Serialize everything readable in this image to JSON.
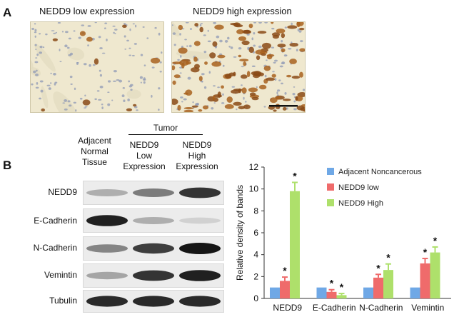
{
  "panel_a": {
    "letter": "A",
    "left_title": "NEDD9 low expression",
    "right_title": "NEDD9 high expression"
  },
  "panel_b": {
    "letter": "B",
    "western_blot": {
      "group_header": "Tumor",
      "columns": [
        {
          "lines": [
            "Adjacent",
            "Normal",
            "Tissue"
          ]
        },
        {
          "lines": [
            "NEDD9",
            "Low",
            "Expression"
          ]
        },
        {
          "lines": [
            "NEDD9",
            "High",
            "Expression"
          ]
        }
      ],
      "rows": [
        {
          "label": "NEDD9",
          "intensity": [
            0.25,
            0.5,
            0.85
          ]
        },
        {
          "label": "E-Cadherin",
          "intensity": [
            0.95,
            0.25,
            0.08
          ]
        },
        {
          "label": "N-Cadherin",
          "intensity": [
            0.45,
            0.8,
            1.0
          ]
        },
        {
          "label": "Vemintin",
          "intensity": [
            0.3,
            0.85,
            0.95
          ]
        },
        {
          "label": "Tubulin",
          "intensity": [
            0.9,
            0.9,
            0.9
          ]
        }
      ]
    }
  },
  "colors": {
    "adjacent": "#6fa8e6",
    "low": "#ef6b6b",
    "high": "#aee06b"
  },
  "chart_data": {
    "type": "bar",
    "title": "",
    "xlabel": "",
    "ylabel": "Relative density of bands",
    "ylim": [
      0,
      12
    ],
    "yticks": [
      0,
      2,
      4,
      6,
      8,
      10,
      12
    ],
    "categories": [
      "NEDD9",
      "E-Cadherin",
      "N-Cadherin",
      "Vemintin"
    ],
    "series": [
      {
        "name": "Adjacent Noncancerous",
        "values": [
          1.0,
          1.0,
          1.0,
          1.0
        ],
        "errors": [
          0,
          0,
          0,
          0
        ],
        "significant": [
          false,
          false,
          false,
          false
        ]
      },
      {
        "name": "NEDD9 low",
        "values": [
          1.6,
          0.6,
          1.9,
          3.2
        ],
        "errors": [
          0.35,
          0.2,
          0.3,
          0.45
        ],
        "significant": [
          true,
          true,
          true,
          true
        ]
      },
      {
        "name": "NEDD9 High",
        "values": [
          9.8,
          0.3,
          2.6,
          4.2
        ],
        "errors": [
          0.8,
          0.15,
          0.55,
          0.5
        ],
        "significant": [
          true,
          true,
          true,
          true
        ]
      }
    ],
    "significance_marker": "*",
    "legend_position": "top-right"
  }
}
